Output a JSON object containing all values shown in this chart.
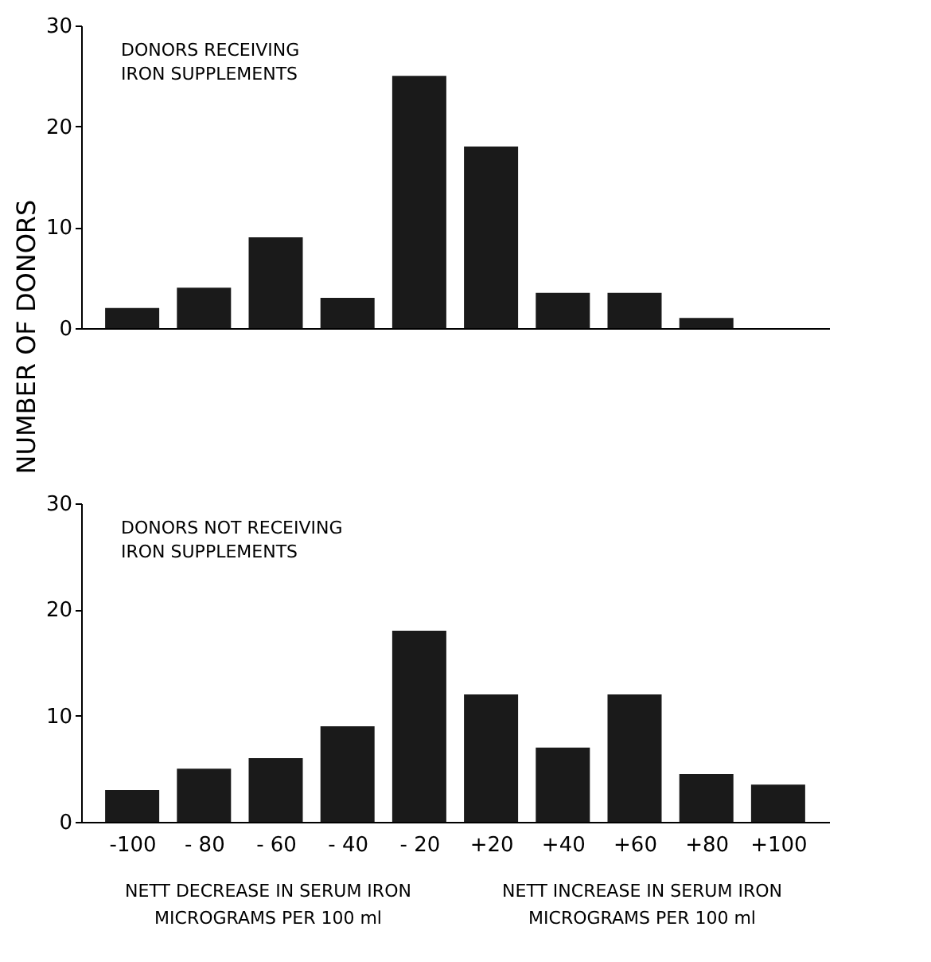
{
  "chart_data": [
    {
      "type": "bar",
      "title": "DONORS RECEIVING IRON SUPPLEMENTS",
      "ylabel": "NUMBER OF DONORS",
      "categories": [
        null,
        null,
        null,
        null,
        null,
        null,
        null,
        null,
        null,
        null
      ],
      "values": [
        2,
        4,
        9,
        3,
        25,
        18,
        3.5,
        3.5,
        1,
        0
      ],
      "color": "#1a1a1a",
      "ylim": [
        0,
        30
      ],
      "yticks": [
        0,
        10,
        20,
        30
      ],
      "grid": false,
      "tick_labels": "y"
    },
    {
      "type": "bar",
      "title": "DONORS NOT RECEIVING IRON SUPPLEMENTS",
      "categories": [
        "-100",
        "- 80",
        "- 60",
        "- 40",
        "- 20",
        "+20",
        "+40",
        "+60",
        "+80",
        "+100"
      ],
      "values": [
        3,
        5,
        6,
        9,
        18,
        12,
        7,
        12,
        4.5,
        3.5
      ],
      "color": "#1a1a1a",
      "ylim": [
        0,
        30
      ],
      "yticks": [
        0,
        10,
        20,
        30
      ],
      "grid": false,
      "annotations": [
        "NETT DECREASE IN SERUM IRON MICROGRAMS PER 100 ml",
        "NETT INCREASE IN SERUM IRON MICROGRAMS PER 100 ml"
      ]
    }
  ]
}
